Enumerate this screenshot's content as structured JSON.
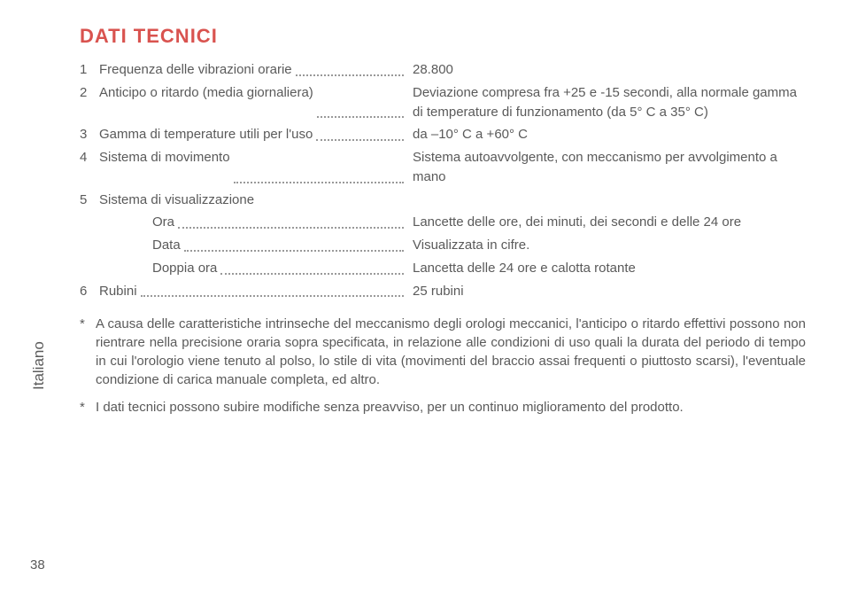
{
  "title": "DATI TECNICI",
  "colors": {
    "title": "#d9534f",
    "text": "#5a5a5a",
    "background": "#ffffff",
    "dots": "#999999"
  },
  "fonts": {
    "title_size": 22,
    "body_size": 15,
    "title_weight": 900
  },
  "specs": [
    {
      "n": "1",
      "label": "Frequenza delle vibrazioni orarie",
      "value": "28.800"
    },
    {
      "n": "2",
      "label": "Anticipo o ritardo (media giornaliera)",
      "value": "Deviazione compresa fra +25 e -15 secondi, alla normale gamma di temperature di funzionamento (da 5° C a 35° C)"
    },
    {
      "n": "3",
      "label": "Gamma di temperature utili per l'uso",
      "value": "da –10° C a +60° C"
    },
    {
      "n": "4",
      "label": "Sistema di movimento",
      "value": "Sistema autoavvolgente, con meccanismo per avvolgimento a mano"
    },
    {
      "n": "5",
      "label": "Sistema di visualizzazione",
      "value": ""
    }
  ],
  "subspecs": [
    {
      "label": "Ora",
      "value": "Lancette delle ore, dei minuti, dei secondi e delle 24 ore"
    },
    {
      "label": "Data",
      "value": "Visualizzata in cifre."
    },
    {
      "label": "Doppia ora",
      "value": "Lancetta delle 24 ore e calotta rotante"
    }
  ],
  "spec6": {
    "n": "6",
    "label": "Rubini",
    "value": "25 rubini"
  },
  "notes": [
    "A causa delle caratteristiche intrinseche del meccanismo degli orologi meccanici, l'anticipo o ritardo effettivi possono non rientrare nella precisione oraria sopra specificata, in relazione alle condizioni di uso quali la durata del periodo di tempo in cui l'orologio viene tenuto al polso, lo stile di vita (movimenti del braccio assai frequenti o piuttosto scarsi), l'eventuale condizione di carica manuale completa, ed altro.",
    "I dati tecnici possono subire modifiche senza preavviso, per un continuo miglioramento del prodotto."
  ],
  "side_label": "Italiano",
  "page_number": "38"
}
